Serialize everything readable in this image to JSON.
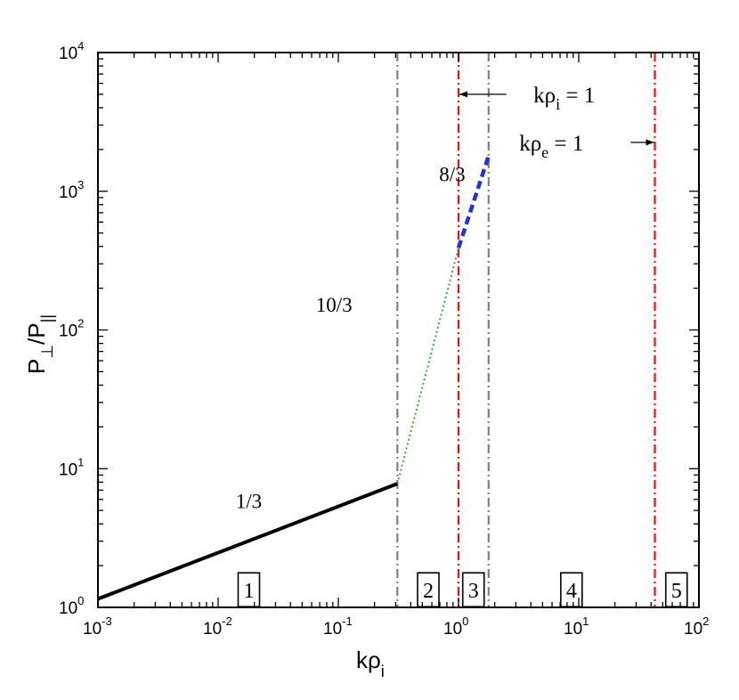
{
  "chart_data": {
    "type": "line",
    "xscale": "log",
    "yscale": "log",
    "xlim": [
      0.001,
      100
    ],
    "ylim": [
      1,
      10000
    ],
    "grid": false,
    "xlabel": {
      "main": "kρ",
      "sub": "i"
    },
    "ylabel": {
      "main": "P",
      "sub1": "⊥",
      "mid": "/P",
      "sub2": "||"
    },
    "xticks": [
      {
        "value": 0.001,
        "base": "10",
        "exp": "-3"
      },
      {
        "value": 0.01,
        "base": "10",
        "exp": "-2"
      },
      {
        "value": 0.1,
        "base": "10",
        "exp": "-1"
      },
      {
        "value": 1,
        "base": "10",
        "exp": "0"
      },
      {
        "value": 10,
        "base": "10",
        "exp": "1"
      },
      {
        "value": 100,
        "base": "10",
        "exp": "2"
      }
    ],
    "yticks": [
      {
        "value": 1,
        "base": "10",
        "exp": "0"
      },
      {
        "value": 10,
        "base": "10",
        "exp": "1"
      },
      {
        "value": 100,
        "base": "10",
        "exp": "2"
      },
      {
        "value": 1000,
        "base": "10",
        "exp": "3"
      },
      {
        "value": 10000,
        "base": "10",
        "exp": "4"
      }
    ],
    "series": [
      {
        "label": "1/3",
        "style": "solid",
        "color": "#000000",
        "x": [
          0.001,
          0.31
        ],
        "y": [
          1.15,
          7.8
        ]
      },
      {
        "label": "10/3",
        "style": "dotted",
        "color": "#33aa33",
        "x": [
          0.31,
          1.0
        ],
        "y": [
          7.8,
          390
        ]
      },
      {
        "label": "8/3",
        "style": "dashed",
        "color": "#2233dd",
        "x": [
          1.0,
          1.78
        ],
        "y": [
          390,
          1800
        ]
      }
    ],
    "vlines": [
      {
        "x": 0.31,
        "color": "#808080"
      },
      {
        "x": 1.0,
        "color": "#ee1111"
      },
      {
        "x": 1.78,
        "color": "#808080"
      },
      {
        "x": 43,
        "color": "#ee1111"
      }
    ],
    "regions": [
      {
        "label": "1",
        "x": 0.018
      },
      {
        "label": "2",
        "x": 0.56
      },
      {
        "label": "3",
        "x": 1.33
      },
      {
        "label": "4",
        "x": 8.7
      },
      {
        "label": "5",
        "x": 65
      }
    ],
    "annotations": [
      {
        "main": "kρ",
        "sub": "i",
        "rest": " = 1"
      },
      {
        "main": "kρ",
        "sub": "e",
        "rest": " = 1"
      }
    ]
  }
}
